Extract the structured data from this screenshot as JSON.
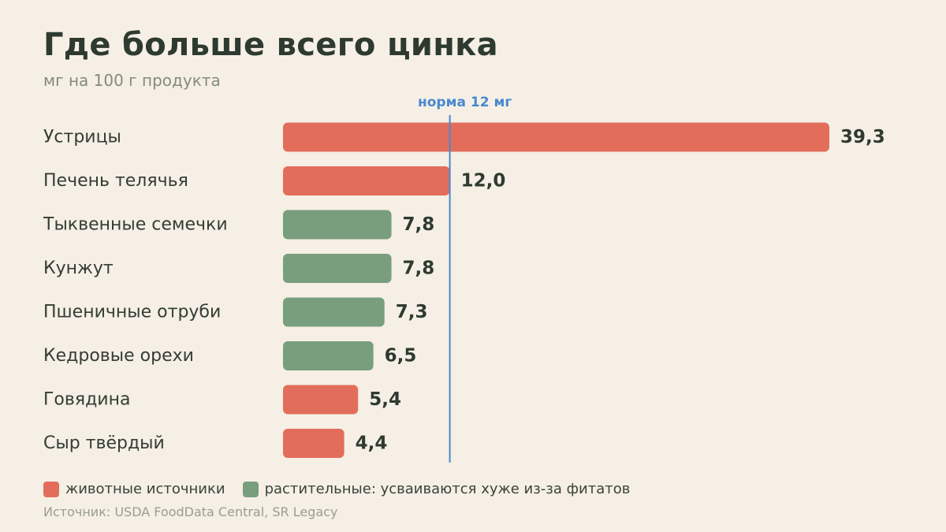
{
  "header": {
    "title": "Где больше всего цинка",
    "subtitle": "мг на 100 г продукта"
  },
  "chart_data": {
    "type": "bar",
    "orientation": "horizontal",
    "categories": [
      "Устрицы",
      "Печень телячья",
      "Тыквенные семечки",
      "Кунжут",
      "Пшеничные отруби",
      "Кедровые орехи",
      "Говядина",
      "Сыр твёрдый"
    ],
    "values": [
      39.3,
      12.0,
      7.8,
      7.8,
      7.3,
      6.5,
      5.4,
      4.4
    ],
    "value_labels": [
      "39,3",
      "12,0",
      "7,8",
      "7,8",
      "7,3",
      "6,5",
      "5,4",
      "4,4"
    ],
    "groups": [
      "animal",
      "animal",
      "plant",
      "plant",
      "plant",
      "plant",
      "animal",
      "animal"
    ],
    "xlim": [
      0,
      39.3
    ],
    "grid": false,
    "reference_line": {
      "value": 12,
      "label": "норма 12 мг",
      "color": "#4a88d0"
    }
  },
  "legend": {
    "placement": "bottom-left",
    "items": [
      {
        "key": "animal",
        "label": "животные источники",
        "color": "#e36d5b"
      },
      {
        "key": "plant",
        "label": "растительные: усваиваются хуже из-за фитатов",
        "color": "#799e7d"
      }
    ]
  },
  "footer": {
    "source": "Источник: USDA FoodData Central, SR Legacy"
  }
}
